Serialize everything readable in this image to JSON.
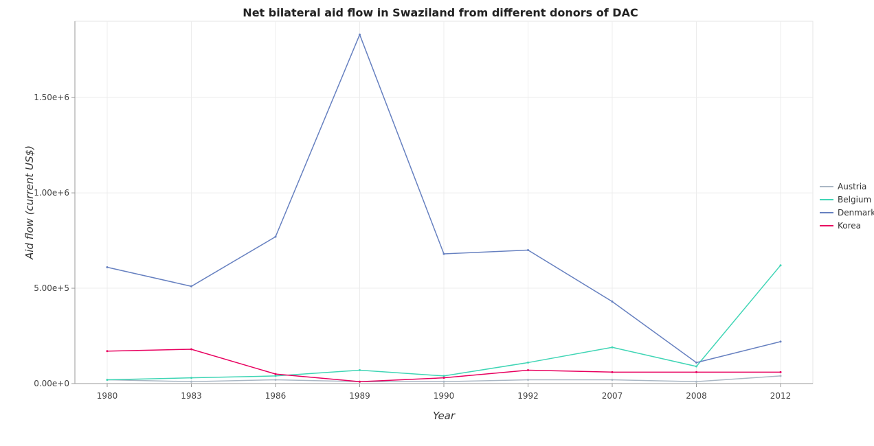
{
  "chart_data": {
    "type": "line",
    "title": "Net bilateral aid flow in Swaziland from different donors of DAC",
    "xlabel": "Year",
    "ylabel": "Aid flow (current US$)",
    "categories": [
      "1980",
      "1983",
      "1986",
      "1989",
      "1990",
      "1992",
      "2007",
      "2008",
      "2012"
    ],
    "ylim": [
      0,
      1900000
    ],
    "yticks": [
      0,
      500000,
      1000000,
      1500000
    ],
    "ytick_labels": [
      "0.00e+0",
      "5.00e+5",
      "1.00e+6",
      "1.50e+6"
    ],
    "grid": true,
    "legend_position": "right",
    "series": [
      {
        "name": "Austria",
        "color": "#aab7c4",
        "values": [
          20000,
          10000,
          20000,
          10000,
          10000,
          20000,
          20000,
          10000,
          40000
        ]
      },
      {
        "name": "Belgium",
        "color": "#3fd5b5",
        "values": [
          20000,
          30000,
          40000,
          70000,
          40000,
          110000,
          190000,
          90000,
          620000
        ]
      },
      {
        "name": "Denmark",
        "color": "#6680c0",
        "values": [
          610000,
          510000,
          770000,
          1830000,
          680000,
          700000,
          430000,
          110000,
          220000
        ]
      },
      {
        "name": "Korea",
        "color": "#e8005f",
        "values": [
          170000,
          180000,
          50000,
          10000,
          30000,
          70000,
          60000,
          60000,
          60000
        ]
      }
    ]
  }
}
